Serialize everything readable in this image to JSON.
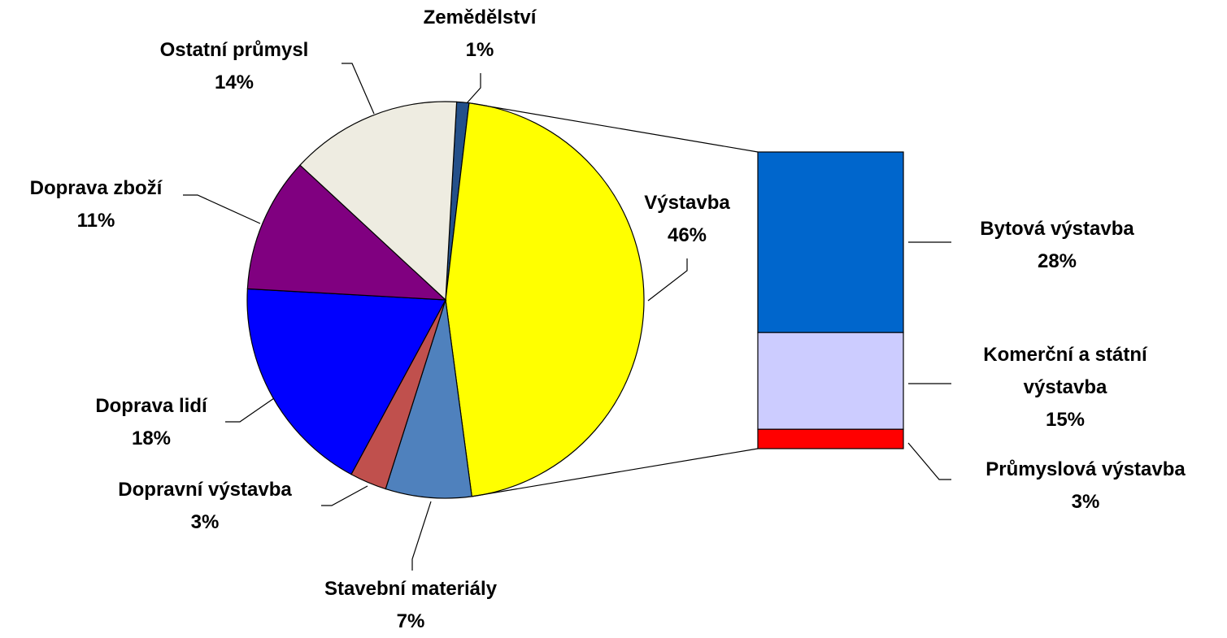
{
  "chart_data": {
    "type": "pie-of-bar",
    "categories": [
      "Zemědělství",
      "Výstavba",
      "Stavební materiály",
      "Dopravní výstavba",
      "Doprava lidí",
      "Doprava zboží",
      "Ostatní průmysl"
    ],
    "values": [
      1,
      46,
      7,
      3,
      18,
      11,
      14
    ],
    "value_labels": [
      "1%",
      "46%",
      "7%",
      "3%",
      "18%",
      "11%",
      "14%"
    ],
    "colors": [
      "#24508a",
      "#ffff00",
      "#4f81bd",
      "#c0504d",
      "#0000ff",
      "#800080",
      "#eeece1"
    ],
    "breakdown": {
      "categories": [
        "Bytová výstavba",
        "Komerční a státní výstavba",
        "Průmyslová výstavba"
      ],
      "values": [
        28,
        15,
        3
      ],
      "value_labels": [
        "28%",
        "15%",
        "3%"
      ],
      "colors": [
        "#0066cc",
        "#ccccff",
        "#ff0000"
      ]
    }
  }
}
